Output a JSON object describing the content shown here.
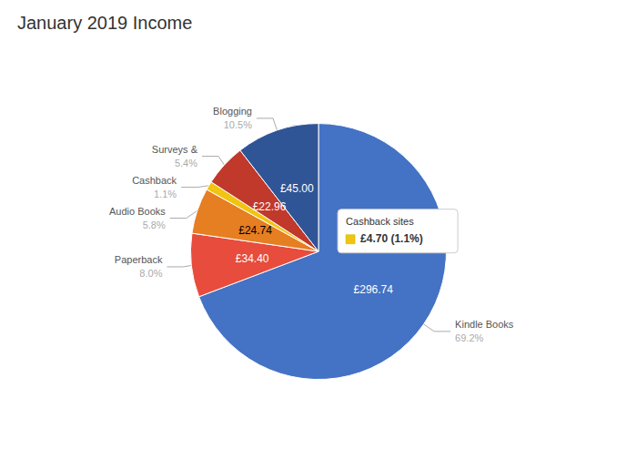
{
  "chart_data": {
    "type": "pie",
    "title": "January 2019 Income",
    "categories": [
      "Kindle Books",
      "Paperback",
      "Audio Books",
      "Cashback",
      "Surveys &",
      "Blogging"
    ],
    "values": [
      296.74,
      34.4,
      24.74,
      4.7,
      22.96,
      45.0
    ],
    "value_labels": [
      "£296.74",
      "£34.40",
      "£24.74",
      null,
      "£22.96",
      "£45.00"
    ],
    "percents": [
      69.2,
      8.0,
      5.8,
      1.1,
      5.4,
      10.5
    ],
    "percent_labels": [
      "69.2%",
      "8.0%",
      "5.8%",
      "1.1%",
      "5.4%",
      "10.5%"
    ],
    "colors": [
      "#4472C4",
      "#E74C3C",
      "#E67E22",
      "#F1C40F",
      "#C0392B",
      "#2F5597"
    ],
    "data_labels": true,
    "annotations": [
      {
        "category": "Cashback",
        "label": "Cashback sites",
        "value_label": "£4.70 (1.1%)"
      }
    ]
  }
}
